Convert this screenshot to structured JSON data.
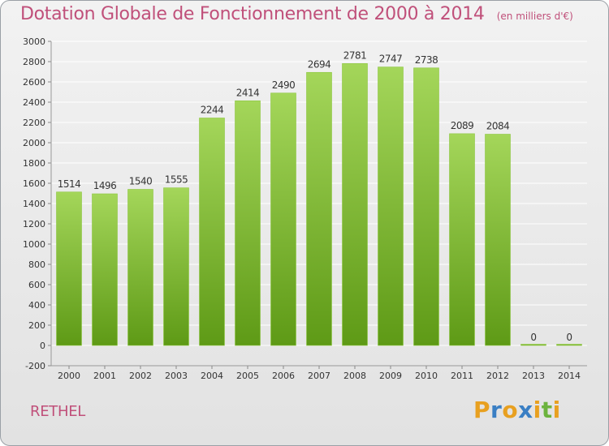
{
  "page": {
    "title": "Dotation Globale de Fonctionnement de 2000 à 2014",
    "subtitle": "(en milliers d'€)",
    "place": "RETHEL",
    "logo": {
      "letters": [
        "P",
        "r",
        "o",
        "x",
        "i",
        "t",
        "i"
      ],
      "colors": [
        "#e8a020",
        "#3a7fc4",
        "#e8a020",
        "#3a7fc4",
        "#e8a020",
        "#6cb33e",
        "#e8a020"
      ]
    }
  },
  "chart_data": {
    "type": "bar",
    "title": "Dotation Globale de Fonctionnement de 2000 à 2014",
    "subtitle": "(en milliers d'€)",
    "categories": [
      "2000",
      "2001",
      "2002",
      "2003",
      "2004",
      "2005",
      "2006",
      "2007",
      "2008",
      "2009",
      "2010",
      "2011",
      "2012",
      "2013",
      "2014"
    ],
    "values": [
      1514,
      1496,
      1540,
      1555,
      2244,
      2414,
      2490,
      2694,
      2781,
      2747,
      2738,
      2089,
      2084,
      0,
      0
    ],
    "data_labels": [
      "1514",
      "1496",
      "1540",
      "1555",
      "2244",
      "2414",
      "2490",
      "2694",
      "2781",
      "2747",
      "2738",
      "2089",
      "2084",
      "0",
      "0"
    ],
    "ylim": [
      -200,
      3000
    ],
    "yticks": [
      -200,
      0,
      200,
      400,
      600,
      800,
      1000,
      1200,
      1400,
      1600,
      1800,
      2000,
      2200,
      2400,
      2600,
      2800,
      3000
    ],
    "xlabel": "",
    "ylabel": "",
    "grid": true,
    "colors": {
      "bar_top": "#a4d65a",
      "bar_bottom": "#5e9a16",
      "grid": "#ffffff",
      "axis_text": "#333333",
      "title": "#c0507a"
    }
  }
}
